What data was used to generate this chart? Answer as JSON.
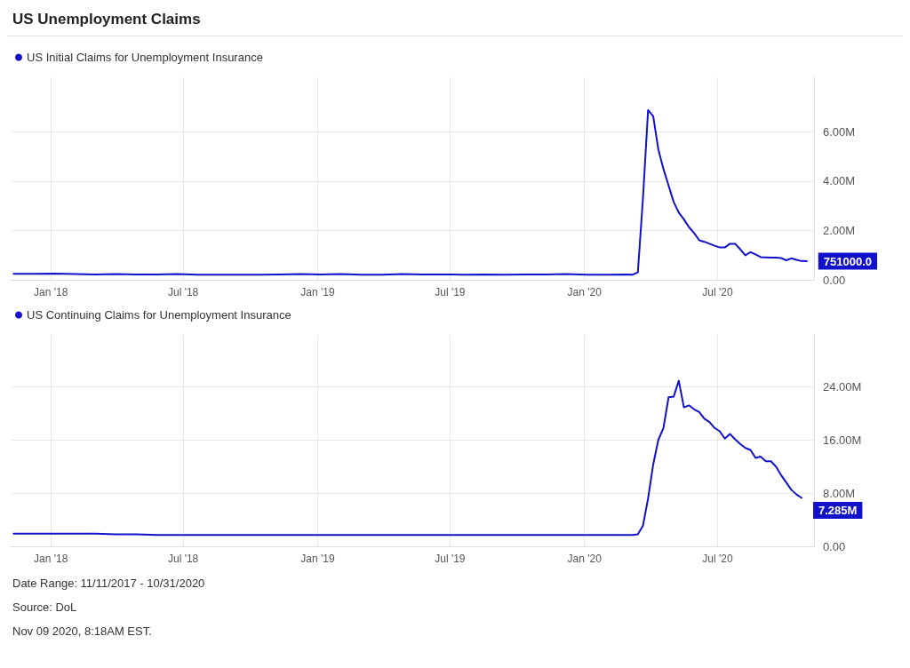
{
  "chart_data": [
    {
      "type": "line",
      "title": "US Unemployment Claims",
      "legend": "top left",
      "grid": true,
      "marker": "none",
      "line_style": "solid",
      "x": [
        "2017-11-11",
        "2017-12-09",
        "2018-01-06",
        "2018-02-03",
        "2018-03-03",
        "2018-03-31",
        "2018-04-28",
        "2018-05-26",
        "2018-06-23",
        "2018-07-21",
        "2018-08-18",
        "2018-09-15",
        "2018-10-13",
        "2018-11-10",
        "2018-12-08",
        "2019-01-05",
        "2019-02-02",
        "2019-03-02",
        "2019-03-30",
        "2019-04-27",
        "2019-05-25",
        "2019-06-22",
        "2019-07-20",
        "2019-08-17",
        "2019-09-14",
        "2019-10-12",
        "2019-11-09",
        "2019-12-07",
        "2020-01-04",
        "2020-02-01",
        "2020-02-29",
        "2020-03-07",
        "2020-03-14",
        "2020-03-21",
        "2020-03-28",
        "2020-04-04",
        "2020-04-11",
        "2020-04-18",
        "2020-04-25",
        "2020-05-02",
        "2020-05-09",
        "2020-05-16",
        "2020-05-23",
        "2020-05-30",
        "2020-06-06",
        "2020-06-13",
        "2020-06-20",
        "2020-06-27",
        "2020-07-04",
        "2020-07-11",
        "2020-07-18",
        "2020-07-25",
        "2020-08-01",
        "2020-08-08",
        "2020-08-15",
        "2020-08-22",
        "2020-08-29",
        "2020-09-05",
        "2020-09-12",
        "2020-09-19",
        "2020-09-26",
        "2020-10-03",
        "2020-10-10",
        "2020-10-17",
        "2020-10-24",
        "2020-10-31"
      ],
      "series": [
        {
          "name": "US Initial Claims for Unemployment Insurance",
          "color": "#1111cc",
          "values": [
            240000,
            240000,
            250000,
            230000,
            220000,
            230000,
            220000,
            220000,
            230000,
            210000,
            210000,
            210000,
            210000,
            220000,
            230000,
            220000,
            230000,
            210000,
            210000,
            230000,
            220000,
            220000,
            210000,
            220000,
            210000,
            220000,
            220000,
            230000,
            210000,
            210000,
            220000,
            210000,
            300000,
            3310000,
            6870000,
            6620000,
            5280000,
            4490000,
            3820000,
            3150000,
            2720000,
            2450000,
            2130000,
            1890000,
            1600000,
            1540000,
            1460000,
            1380000,
            1310000,
            1310000,
            1460000,
            1460000,
            1240000,
            990000,
            1120000,
            1030000,
            920000,
            910000,
            900000,
            900000,
            880000,
            790000,
            870000,
            810000,
            760000,
            751000
          ]
        }
      ],
      "xlim": [
        "2017-11-07",
        "2020-11-10"
      ],
      "xticks": [
        {
          "value": "2018-01-01",
          "label": "Jan '18"
        },
        {
          "value": "2018-07-01",
          "label": "Jul '18"
        },
        {
          "value": "2019-01-01",
          "label": "Jan '19"
        },
        {
          "value": "2019-07-01",
          "label": "Jul '19"
        },
        {
          "value": "2020-01-01",
          "label": "Jan '20"
        },
        {
          "value": "2020-07-01",
          "label": "Jul '20"
        }
      ],
      "ylim": [
        0,
        8200000
      ],
      "yticks": [
        {
          "value": 0,
          "label": "0.00"
        },
        {
          "value": 2000000,
          "label": "2.00M"
        },
        {
          "value": 4000000,
          "label": "4.00M"
        },
        {
          "value": 6000000,
          "label": "6.00M"
        }
      ],
      "annotations": [
        {
          "text": "751000.0",
          "x": "2020-10-31",
          "y": 751000
        }
      ]
    },
    {
      "type": "line",
      "legend": "top left",
      "grid": true,
      "marker": "none",
      "line_style": "solid",
      "x": [
        "2017-11-11",
        "2017-12-09",
        "2018-01-06",
        "2018-02-03",
        "2018-03-03",
        "2018-03-31",
        "2018-04-28",
        "2018-05-26",
        "2018-06-23",
        "2018-07-21",
        "2018-08-18",
        "2018-09-15",
        "2018-10-13",
        "2018-11-10",
        "2018-12-08",
        "2019-01-05",
        "2019-02-02",
        "2019-03-02",
        "2019-03-30",
        "2019-04-27",
        "2019-05-25",
        "2019-06-22",
        "2019-07-20",
        "2019-08-17",
        "2019-09-14",
        "2019-10-12",
        "2019-11-09",
        "2019-12-07",
        "2020-01-04",
        "2020-02-01",
        "2020-02-29",
        "2020-03-07",
        "2020-03-14",
        "2020-03-21",
        "2020-03-28",
        "2020-04-04",
        "2020-04-11",
        "2020-04-18",
        "2020-04-25",
        "2020-05-02",
        "2020-05-09",
        "2020-05-16",
        "2020-05-23",
        "2020-05-30",
        "2020-06-06",
        "2020-06-13",
        "2020-06-20",
        "2020-06-27",
        "2020-07-04",
        "2020-07-11",
        "2020-07-18",
        "2020-07-25",
        "2020-08-01",
        "2020-08-08",
        "2020-08-15",
        "2020-08-22",
        "2020-08-29",
        "2020-09-05",
        "2020-09-12",
        "2020-09-19",
        "2020-09-26",
        "2020-10-03",
        "2020-10-10",
        "2020-10-17",
        "2020-10-24"
      ],
      "series": [
        {
          "name": "US Continuing Claims for Unemployment Insurance",
          "color": "#1111cc",
          "values": [
            1900000,
            1900000,
            1900000,
            1900000,
            1900000,
            1800000,
            1800000,
            1700000,
            1700000,
            1700000,
            1700000,
            1700000,
            1700000,
            1700000,
            1700000,
            1700000,
            1700000,
            1700000,
            1700000,
            1700000,
            1700000,
            1700000,
            1700000,
            1700000,
            1700000,
            1700000,
            1700000,
            1700000,
            1700000,
            1700000,
            1700000,
            1700000,
            1800000,
            3100000,
            7200000,
            12300000,
            16000000,
            17800000,
            22400000,
            22500000,
            24900000,
            20900000,
            21200000,
            20600000,
            20200000,
            19200000,
            18700000,
            17800000,
            17300000,
            16200000,
            16900000,
            16100000,
            15400000,
            14800000,
            14500000,
            13300000,
            13500000,
            12800000,
            12800000,
            12000000,
            10700000,
            9600000,
            8500000,
            7800000,
            7285000
          ]
        }
      ],
      "xlim": [
        "2017-11-07",
        "2020-11-10"
      ],
      "xticks": [
        {
          "value": "2018-01-01",
          "label": "Jan '18"
        },
        {
          "value": "2018-07-01",
          "label": "Jul '18"
        },
        {
          "value": "2019-01-01",
          "label": "Jan '19"
        },
        {
          "value": "2019-07-01",
          "label": "Jul '19"
        },
        {
          "value": "2020-01-01",
          "label": "Jan '20"
        },
        {
          "value": "2020-07-01",
          "label": "Jul '20"
        }
      ],
      "ylim": [
        0,
        31800000
      ],
      "yticks": [
        {
          "value": 0,
          "label": "0.00"
        },
        {
          "value": 8000000,
          "label": "8.00M"
        },
        {
          "value": 16000000,
          "label": "16.00M"
        },
        {
          "value": 24000000,
          "label": "24.00M"
        }
      ],
      "annotations": [
        {
          "text": "7.285M",
          "x": "2020-10-24",
          "y": 7285000
        },
        "Date Range: 11/11/2017 - 10/31/2020",
        "Source: DoL",
        "Nov 09 2020, 8:18AM EST."
      ]
    }
  ]
}
